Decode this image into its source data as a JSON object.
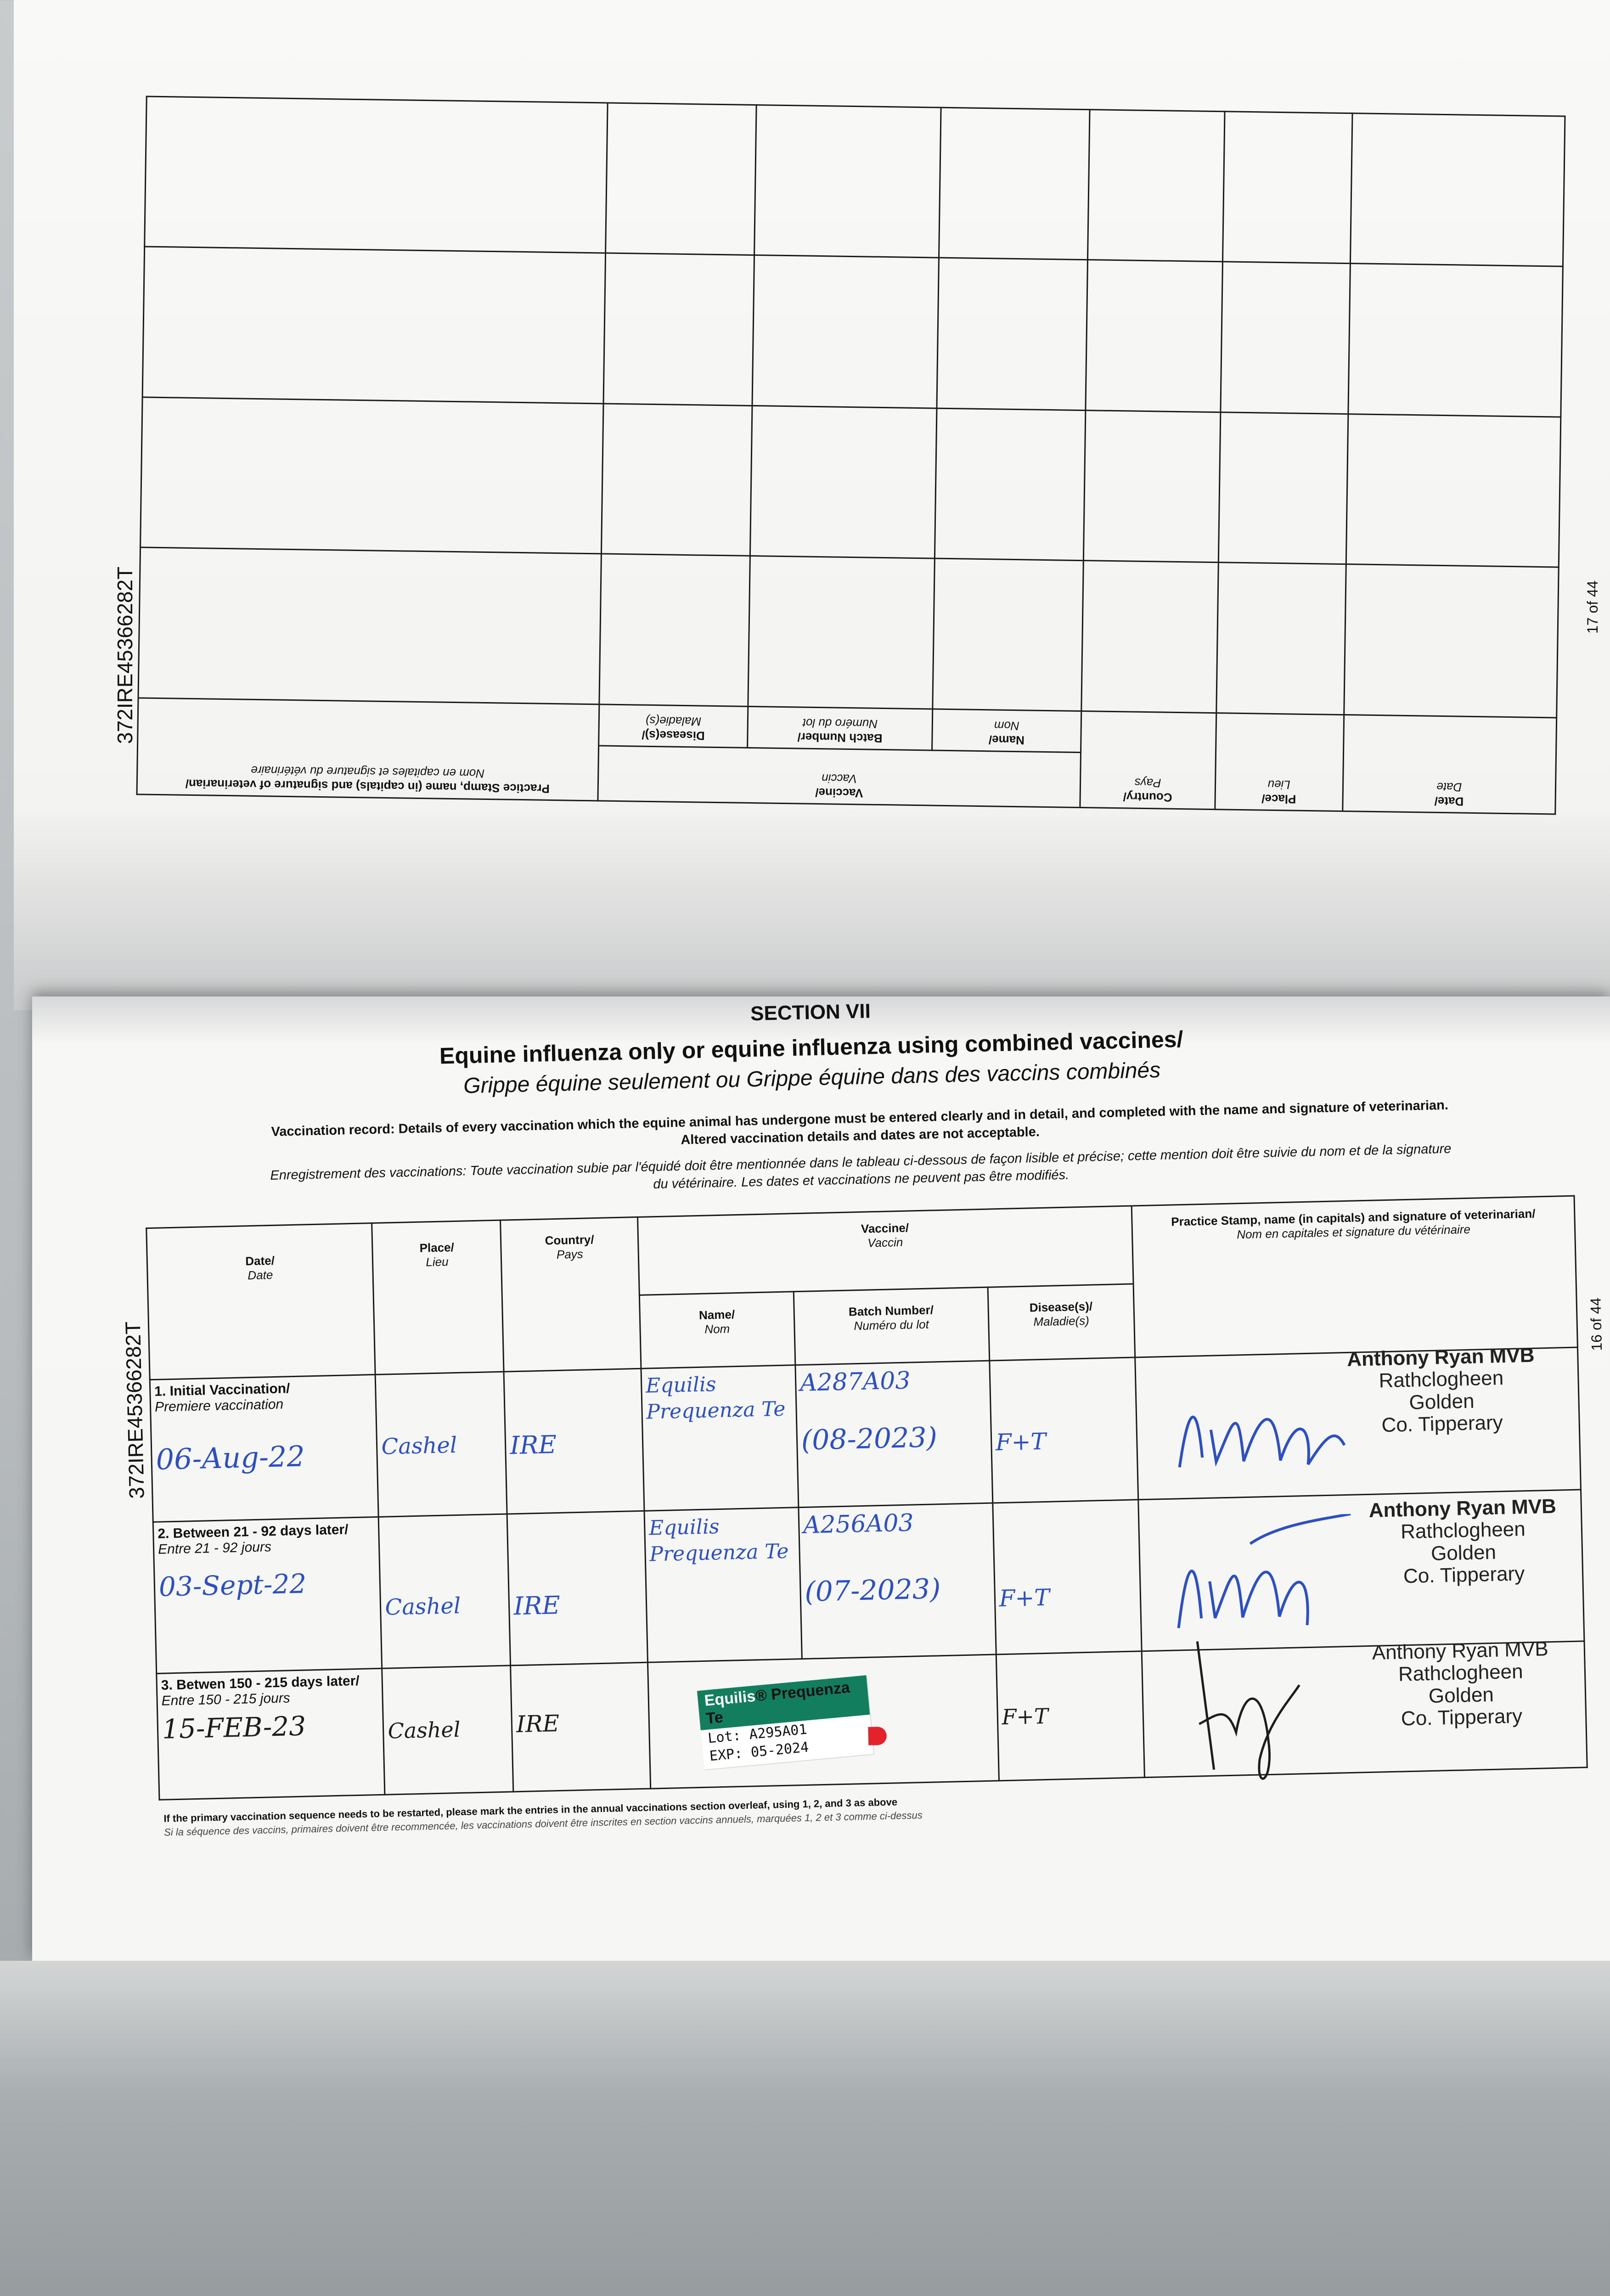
{
  "top_page": {
    "passport_id": "372IRE45366282T",
    "page_number": "17 of 44",
    "headers": {
      "date": "Date/",
      "date_fr": "Date",
      "place": "Place/",
      "place_fr": "Lieu",
      "country": "Country/",
      "country_fr": "Pays",
      "vaccine": "Vaccine/",
      "vaccine_fr": "Vaccin",
      "name": "Name/",
      "name_fr": "Nom",
      "batch": "Batch Number/",
      "batch_fr": "Numéro du lot",
      "disease": "Disease(s)/",
      "disease_fr": "Maladie(s)",
      "stamp": "Practice Stamp, name (in capitals) and signature of veterinarian/",
      "stamp_fr": "Nom en capitales et signature du vétérinaire"
    }
  },
  "bottom_page": {
    "section": "SECTION VII",
    "title": "Equine influenza only or equine influenza using combined vaccines/",
    "subtitle": "Grippe équine seulement ou Grippe équine dans des vaccins combinés",
    "instruction_en_1": "Vaccination record: Details of every vaccination which the equine animal has undergone must be entered clearly and in detail, and completed with the name and signature of veterinarian.",
    "instruction_en_2": "Altered vaccination details and dates are not acceptable.",
    "instruction_fr_1": "Enregistrement des vaccinations: Toute vaccination subie par l'équidé doit être mentionnée dans le tableau ci-dessous de façon lisible et précise; cette mention doit être suivie du nom et de la signature",
    "instruction_fr_2": "du vétérinaire. Les dates et vaccinations ne peuvent pas être modifiés.",
    "passport_id": "372IRE45366282T",
    "page_number": "16 of 44",
    "headers": {
      "date": "Date/",
      "date_fr": "Date",
      "place": "Place/",
      "place_fr": "Lieu",
      "country": "Country/",
      "country_fr": "Pays",
      "vaccine": "Vaccine/",
      "vaccine_fr": "Vaccin",
      "name": "Name/",
      "name_fr": "Nom",
      "batch": "Batch Number/",
      "batch_fr": "Numéro du lot",
      "disease": "Disease(s)/",
      "disease_fr": "Maladie(s)",
      "stamp": "Practice Stamp, name (in capitals) and signature of veterinarian/",
      "stamp_fr": "Nom en capitales et signature du vétérinaire"
    },
    "rows": [
      {
        "label": "1. Initial Vaccination/",
        "label_fr": "Premiere vaccination",
        "date": "06-Aug-22",
        "place": "Cashel",
        "country": "IRE",
        "name": "Equilis Prequenza Te",
        "batch": "A287A03",
        "batch_exp": "(08-2023)",
        "disease": "F+T",
        "stamp": [
          "Anthony Ryan MVB",
          "Rathclogheen",
          "Golden",
          "Co. Tipperary"
        ]
      },
      {
        "label": "2. Between 21 - 92 days later/",
        "label_fr": "Entre 21 - 92 jours",
        "date": "03-Sept-22",
        "place": "Cashel",
        "country": "IRE",
        "name": "Equilis Prequenza Te",
        "batch": "A256A03",
        "batch_exp": "(07-2023)",
        "disease": "F+T",
        "stamp": [
          "Anthony Ryan MVB",
          "Rathclogheen",
          "Golden",
          "Co. Tipperary"
        ]
      },
      {
        "label": "3. Betwen 150 - 215 days later/",
        "label_fr": "Entre 150 - 215 jours",
        "date": "15-FEB-23",
        "place": "Cashel",
        "country": "IRE",
        "sticker": {
          "brand": "Equilis",
          "product": "® Prequenza Te",
          "lot_label": "Lot:",
          "lot": "A295A01",
          "exp_label": "EXP:",
          "exp": "05-2024"
        },
        "disease": "F+T",
        "stamp": [
          "Anthony Ryan MVB",
          "Rathclogheen",
          "Golden",
          "Co. Tipperary"
        ]
      }
    ],
    "footnote_en": "If the primary vaccination sequence needs to be restarted, please mark the entries in the annual vaccinations section overleaf, using 1, 2, and 3 as above",
    "footnote_fr": "Si la séquence des vaccins, primaires doivent être recommencée, les vaccinations doivent être inscrites en section vaccins annuels, marquées 1, 2 et 3 comme ci-dessus"
  },
  "colors": {
    "ink_blue": "#2c50c4",
    "sticker_green": "#137e5e",
    "sticker_red": "#e3222b"
  }
}
